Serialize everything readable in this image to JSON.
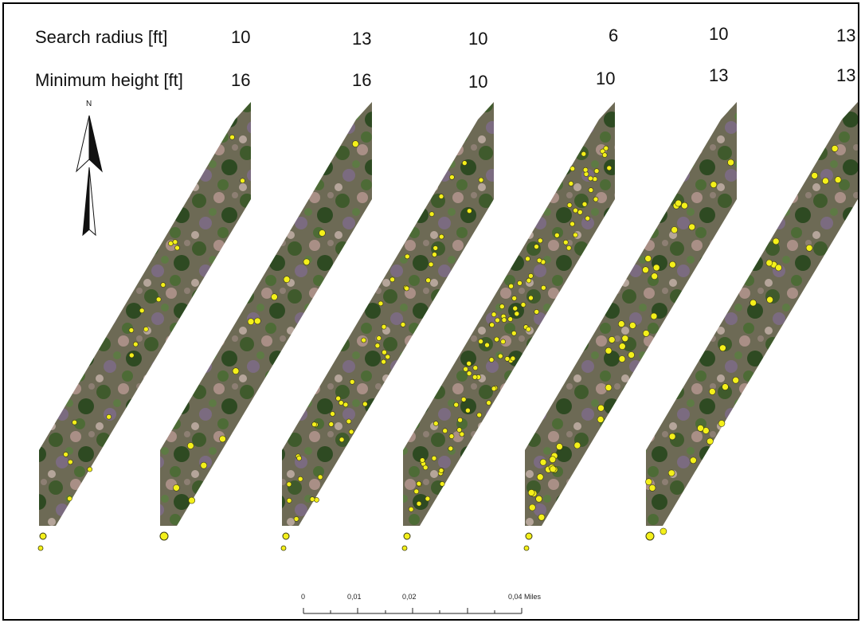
{
  "labels": {
    "search_radius": "Search radius [ft]",
    "minimum_height": "Minimum height [ft]"
  },
  "panels": [
    {
      "search_radius": "10",
      "minimum_height": "16",
      "detected_trees": 18
    },
    {
      "search_radius": "13",
      "minimum_height": "16",
      "detected_trees": 13
    },
    {
      "search_radius": "10",
      "minimum_height": "10",
      "detected_trees": 45
    },
    {
      "search_radius": "6",
      "minimum_height": "10",
      "detected_trees": 95
    },
    {
      "search_radius": "10",
      "minimum_height": "13",
      "detected_trees": 40
    },
    {
      "search_radius": "13",
      "minimum_height": "13",
      "detected_trees": 25
    }
  ],
  "north_arrow": {
    "label": "N",
    "icon": "north-arrow-icon"
  },
  "scale_bar": {
    "ticks": [
      "0",
      "0,01",
      "0,02",
      "0,04 Miles"
    ]
  },
  "colors": {
    "tree_marker": "#f4f01a",
    "marker_outline": "#3a3a10",
    "frame": "#000000"
  },
  "imagery": "aerial orthophoto strip (vegetation, shrubs, bare soil)"
}
